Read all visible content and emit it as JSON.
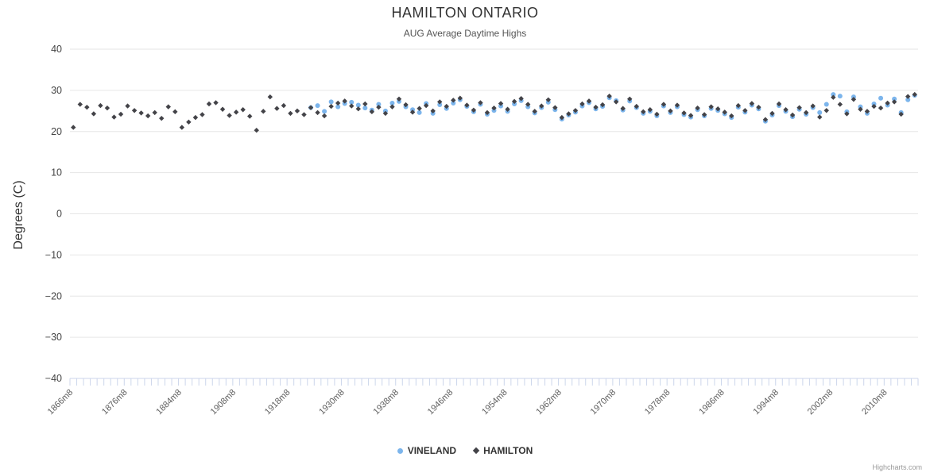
{
  "credits": "Highcharts.com",
  "colors": {
    "vineland": "#7cb5ec",
    "hamilton": "#434348",
    "grid": "#e6e6e6",
    "axis_line": "#ccd6eb",
    "x_label": "#606060",
    "y_label": "#444444",
    "title": "#333333",
    "subtitle": "#555555"
  },
  "chart_data": {
    "type": "scatter",
    "title": "HAMILTON ONTARIO",
    "subtitle": "AUG Average Daytime Highs",
    "ylabel": "Degrees (C)",
    "xlabel": "",
    "ylim": [
      -40,
      40
    ],
    "yticks": [
      -40,
      -30,
      -20,
      -10,
      0,
      10,
      20,
      30,
      40
    ],
    "grid": true,
    "legend_position": "bottom",
    "x_label_step": 8,
    "x_label_rotation": -45,
    "categories": [
      "1866m8",
      "1867m8",
      "1869m8",
      "1870m8",
      "1871m8",
      "1872m8",
      "1874m8",
      "1875m8",
      "1876m8",
      "1877m8",
      "1878m8",
      "1879m8",
      "1880m8",
      "1881m8",
      "1882m8",
      "1883m8",
      "1884m8",
      "1887m8",
      "1890m8",
      "1893m8",
      "1896m8",
      "1899m8",
      "1902m8",
      "1905m8",
      "1908m8",
      "1909m8",
      "1911m8",
      "1912m8",
      "1913m8",
      "1914m8",
      "1916m8",
      "1917m8",
      "1918m8",
      "1920m8",
      "1921m8",
      "1923m8",
      "1924m8",
      "1926m8",
      "1927m8",
      "1929m8",
      "1930m8",
      "1931m8",
      "1932m8",
      "1933m8",
      "1934m8",
      "1935m8",
      "1936m8",
      "1937m8",
      "1938m8",
      "1939m8",
      "1940m8",
      "1941m8",
      "1942m8",
      "1943m8",
      "1944m8",
      "1945m8",
      "1946m8",
      "1947m8",
      "1948m8",
      "1949m8",
      "1950m8",
      "1951m8",
      "1952m8",
      "1953m8",
      "1954m8",
      "1955m8",
      "1956m8",
      "1957m8",
      "1958m8",
      "1959m8",
      "1960m8",
      "1961m8",
      "1962m8",
      "1963m8",
      "1964m8",
      "1965m8",
      "1966m8",
      "1967m8",
      "1968m8",
      "1969m8",
      "1970m8",
      "1971m8",
      "1972m8",
      "1973m8",
      "1974m8",
      "1975m8",
      "1976m8",
      "1977m8",
      "1978m8",
      "1979m8",
      "1980m8",
      "1981m8",
      "1982m8",
      "1983m8",
      "1984m8",
      "1985m8",
      "1986m8",
      "1987m8",
      "1988m8",
      "1989m8",
      "1990m8",
      "1991m8",
      "1992m8",
      "1993m8",
      "1994m8",
      "1995m8",
      "1996m8",
      "1997m8",
      "1998m8",
      "1999m8",
      "2000m8",
      "2001m8",
      "2002m8",
      "2003m8",
      "2004m8",
      "2005m8",
      "2006m8",
      "2007m8",
      "2008m8",
      "2009m8",
      "2010m8",
      "2011m8",
      "2012m8",
      "2013m8",
      "2014m8"
    ],
    "series": [
      {
        "name": "VINELAND",
        "color": "#7cb5ec",
        "marker": "circle",
        "values": [
          null,
          null,
          null,
          null,
          null,
          null,
          null,
          null,
          null,
          null,
          null,
          null,
          null,
          null,
          null,
          null,
          null,
          null,
          null,
          null,
          null,
          null,
          null,
          null,
          null,
          null,
          null,
          null,
          null,
          null,
          null,
          null,
          null,
          null,
          null,
          25.8,
          26.3,
          24.9,
          27.2,
          26.0,
          26.8,
          27.1,
          26.4,
          25.7,
          25.2,
          26.6,
          25.0,
          26.9,
          27.3,
          26.0,
          25.3,
          24.6,
          26.8,
          24.4,
          26.5,
          25.6,
          26.9,
          27.7,
          26.1,
          24.8,
          26.6,
          24.2,
          25.1,
          26.2,
          24.9,
          26.7,
          27.5,
          26.0,
          24.5,
          25.8,
          27.1,
          25.3,
          23.0,
          24.0,
          24.7,
          26.2,
          27.0,
          25.5,
          26.1,
          28.2,
          27.5,
          25.2,
          27.4,
          25.8,
          24.4,
          24.9,
          23.8,
          26.2,
          24.6,
          26.0,
          24.1,
          23.5,
          25.3,
          23.8,
          25.6,
          25.1,
          24.3,
          23.4,
          25.9,
          24.7,
          26.4,
          25.5,
          22.5,
          24.0,
          26.3,
          24.9,
          23.6,
          25.4,
          24.2,
          25.8,
          24.6,
          26.6,
          29.0,
          28.6,
          24.8,
          28.4,
          26.0,
          24.4,
          26.7,
          28.1,
          26.4,
          27.9,
          24.6,
          27.7,
          28.8
        ]
      },
      {
        "name": "HAMILTON",
        "color": "#434348",
        "marker": "diamond",
        "values": [
          21.0,
          26.6,
          25.9,
          24.3,
          26.3,
          25.7,
          23.5,
          24.2,
          26.2,
          25.1,
          24.5,
          23.8,
          24.6,
          23.2,
          26.0,
          24.8,
          21.0,
          22.3,
          23.4,
          24.1,
          26.7,
          27.0,
          25.4,
          23.9,
          24.7,
          25.3,
          23.7,
          20.3,
          24.9,
          28.4,
          25.6,
          26.3,
          24.4,
          25.0,
          24.1,
          25.8,
          24.6,
          23.8,
          26.1,
          26.9,
          27.4,
          26.2,
          25.5,
          26.7,
          24.8,
          25.9,
          24.4,
          26.0,
          27.9,
          26.5,
          24.7,
          25.6,
          26.3,
          25.0,
          27.2,
          26.1,
          27.6,
          28.1,
          26.4,
          25.2,
          27.0,
          24.6,
          25.7,
          26.8,
          25.4,
          27.3,
          28.0,
          26.6,
          24.9,
          26.2,
          27.7,
          25.8,
          23.4,
          24.3,
          25.1,
          26.7,
          27.4,
          25.9,
          26.5,
          28.6,
          27.2,
          25.6,
          27.9,
          26.1,
          24.8,
          25.3,
          24.2,
          26.6,
          25.0,
          26.4,
          24.5,
          23.9,
          25.7,
          24.1,
          26.0,
          25.5,
          24.7,
          23.8,
          26.3,
          25.1,
          26.8,
          25.9,
          22.9,
          24.4,
          26.7,
          25.3,
          24.0,
          25.8,
          24.6,
          26.2,
          23.5,
          25.1,
          28.3,
          26.6,
          24.3,
          27.8,
          25.4,
          24.9,
          26.1,
          25.7,
          26.9,
          27.2,
          24.2,
          28.5,
          29.0
        ]
      }
    ]
  }
}
